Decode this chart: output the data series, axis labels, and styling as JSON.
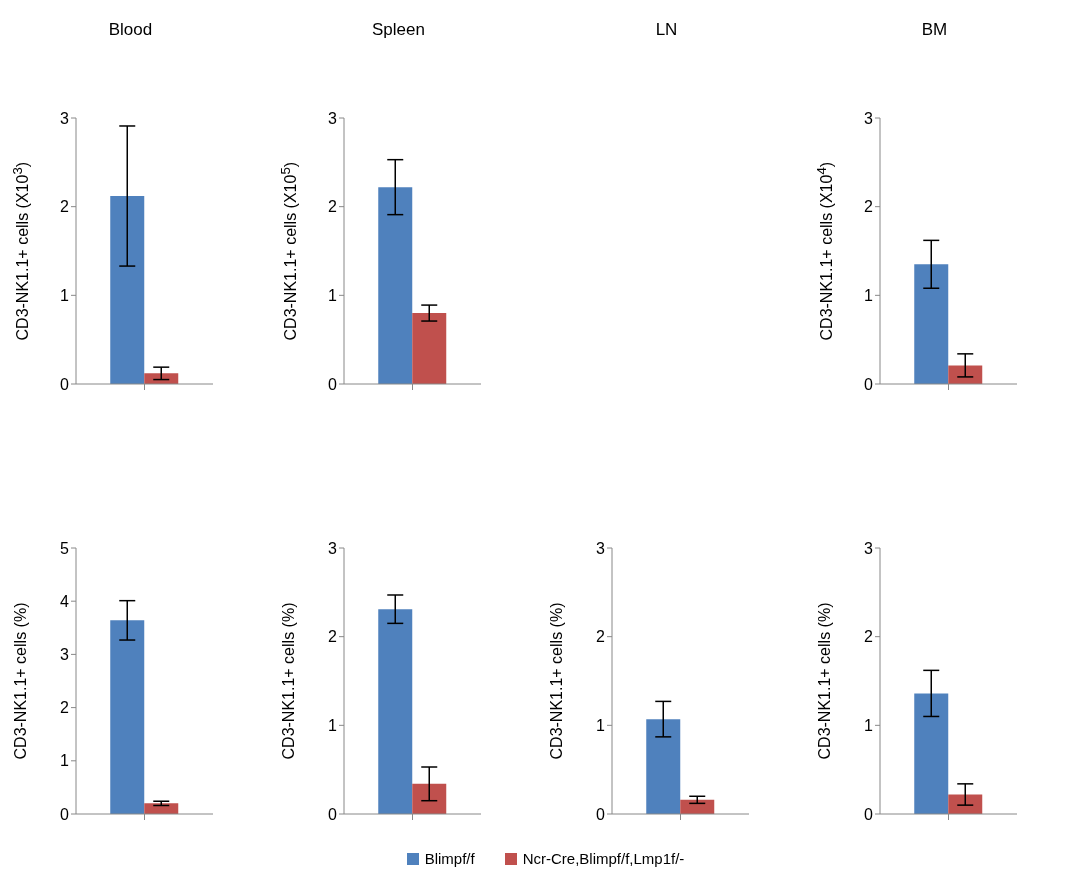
{
  "chart_data": [
    {
      "type": "bar",
      "title": "Blood",
      "ylabel": "CD3-NK1.1+ cells (X10$^{3}$)",
      "categories": [
        null
      ],
      "ylim": [
        0,
        3
      ],
      "yticks": [
        0,
        1,
        2,
        3
      ],
      "series": [
        {
          "color": "#4f81bd",
          "values": [
            2.12
          ],
          "errors": [
            0.79
          ]
        },
        {
          "color": "#c0504d",
          "values": [
            0.12
          ],
          "errors": [
            0.07
          ]
        }
      ]
    },
    {
      "type": "bar",
      "title": "Spleen",
      "ylabel": "CD3-NK1.1+ cells (X10$^{5}$)",
      "categories": [
        null
      ],
      "ylim": [
        0,
        3
      ],
      "yticks": [
        0,
        1,
        2,
        3
      ],
      "series": [
        {
          "color": "#4f81bd",
          "values": [
            2.22
          ],
          "errors": [
            0.31
          ]
        },
        {
          "color": "#c0504d",
          "values": [
            0.8
          ],
          "errors": [
            0.09
          ]
        }
      ]
    },
    {
      "type": "bar",
      "title": "BM",
      "ylabel": "CD3-NK1.1+ cells (X10$^{4}$)",
      "categories": [
        null
      ],
      "ylim": [
        0,
        3
      ],
      "yticks": [
        0,
        1,
        2,
        3
      ],
      "series": [
        {
          "color": "#4f81bd",
          "values": [
            1.35
          ],
          "errors": [
            0.27
          ]
        },
        {
          "color": "#c0504d",
          "values": [
            0.21
          ],
          "errors": [
            0.13
          ]
        }
      ]
    },
    {
      "type": "bar",
      "ylabel": "CD3-NK1.1+ cells (%)",
      "categories": [
        null
      ],
      "ylim": [
        0,
        5
      ],
      "yticks": [
        0,
        1,
        2,
        3,
        4,
        5
      ],
      "series": [
        {
          "color": "#4f81bd",
          "values": [
            3.64
          ],
          "errors": [
            0.37
          ]
        },
        {
          "color": "#c0504d",
          "values": [
            0.2
          ],
          "errors": [
            0.04
          ]
        }
      ]
    },
    {
      "type": "bar",
      "ylabel": "CD3-NK1.1+ cells (%)",
      "categories": [
        null
      ],
      "ylim": [
        0,
        3
      ],
      "yticks": [
        0,
        1,
        2,
        3
      ],
      "series": [
        {
          "color": "#4f81bd",
          "values": [
            2.31
          ],
          "errors": [
            0.16
          ]
        },
        {
          "color": "#c0504d",
          "values": [
            0.34
          ],
          "errors": [
            0.19
          ]
        }
      ]
    },
    {
      "type": "bar",
      "title": "LN",
      "ylabel": "CD3-NK1.1+ cells (%)",
      "categories": [
        null
      ],
      "ylim": [
        0,
        3
      ],
      "yticks": [
        0,
        1,
        2,
        3
      ],
      "series": [
        {
          "color": "#4f81bd",
          "values": [
            1.07
          ],
          "errors": [
            0.2
          ]
        },
        {
          "color": "#c0504d",
          "values": [
            0.16
          ],
          "errors": [
            0.04
          ]
        }
      ]
    },
    {
      "type": "bar",
      "ylabel": "CD3-NK1.1+ cells (%)",
      "categories": [
        null
      ],
      "ylim": [
        0,
        3
      ],
      "yticks": [
        0,
        1,
        2,
        3
      ],
      "legend": "bottom",
      "series": [
        {
          "name": "Blimpf/f",
          "color": "#4f81bd",
          "values": [
            1.36
          ],
          "errors": [
            0.26
          ]
        },
        {
          "name": "Ncr-Cre,Blimpf/f,Lmp1f/-",
          "color": "#c0504d",
          "values": [
            0.22
          ],
          "errors": [
            0.12
          ]
        }
      ]
    }
  ]
}
